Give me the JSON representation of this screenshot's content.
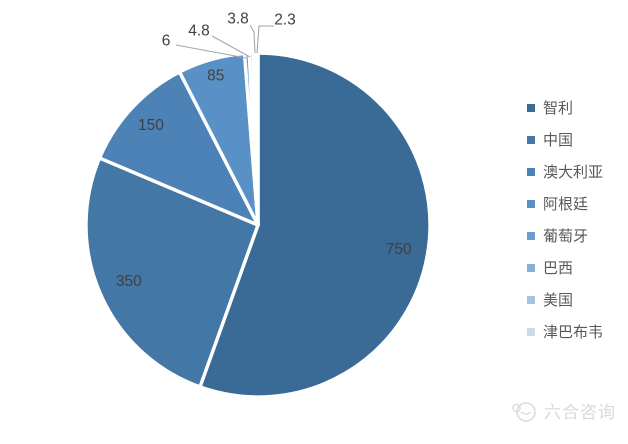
{
  "chart_data": {
    "type": "pie",
    "title": "",
    "categories": [
      "智利",
      "中国",
      "澳大利亚",
      "阿根廷",
      "葡萄牙",
      "巴西",
      "美国",
      "津巴布韦"
    ],
    "values": [
      750,
      350,
      150,
      85,
      6,
      4.8,
      3.8,
      2.3
    ],
    "data_labels": [
      "750",
      "350",
      "150",
      "85",
      "6",
      "4.8",
      "3.8",
      "2.3"
    ],
    "colors": [
      "#3A6A96",
      "#4377A6",
      "#4C82B5",
      "#5991C7",
      "#6B9ECF",
      "#85AFD7",
      "#A5C3E1",
      "#C9DAEB"
    ],
    "legend_position": "right",
    "start_angle_deg": 0,
    "direction": "clockwise",
    "label_color": "#404040",
    "leader_line_color": "#A6A6A6",
    "slice_border_color": "#FFFFFF"
  },
  "watermark": {
    "text": "六合咨询"
  }
}
